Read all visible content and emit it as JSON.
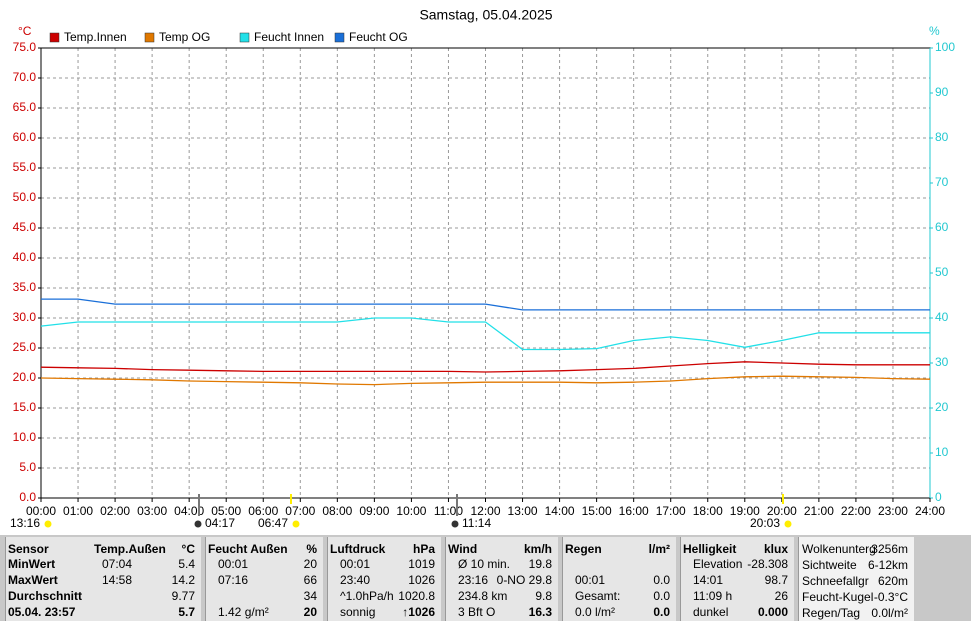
{
  "chart_data": {
    "type": "line",
    "title": "Samstag, 05.04.2025",
    "y_unit": "°C",
    "y2_unit": "%",
    "x": [
      0,
      1,
      2,
      3,
      4,
      5,
      6,
      7,
      8,
      9,
      10,
      11,
      12,
      13,
      14,
      15,
      16,
      17,
      18,
      19,
      20,
      21,
      22,
      23,
      24
    ],
    "series": [
      {
        "name": "Temp.Innen",
        "color": "#cc0000",
        "values": [
          21.8,
          21.7,
          21.6,
          21.4,
          21.3,
          21.2,
          21.1,
          21.1,
          21.1,
          21.1,
          21.1,
          21.1,
          21.0,
          21.1,
          21.2,
          21.4,
          21.6,
          22.0,
          22.4,
          22.7,
          22.5,
          22.3,
          22.2,
          22.2,
          22.2
        ]
      },
      {
        "name": "Temp OG",
        "color": "#e07800",
        "values": [
          20.0,
          19.9,
          19.8,
          19.7,
          19.5,
          19.4,
          19.3,
          19.2,
          19.0,
          18.9,
          19.1,
          19.2,
          19.3,
          19.3,
          19.3,
          19.2,
          19.3,
          19.5,
          19.9,
          20.2,
          20.3,
          20.2,
          20.1,
          19.9,
          19.8
        ]
      },
      {
        "name": "Feucht Innen",
        "color": "#22e0e8",
        "axis": "y2",
        "values": [
          38.2,
          39.1,
          39.1,
          39.1,
          39.1,
          39.1,
          39.1,
          39.1,
          39.1,
          40,
          40,
          39.1,
          39.1,
          33,
          33,
          33.2,
          35,
          35.8,
          35,
          33.5,
          35,
          36.7,
          36.7,
          36.7,
          36.7
        ]
      },
      {
        "name": "Feucht OG",
        "color": "#1a6fd8",
        "axis": "y2",
        "values": [
          44.2,
          44.2,
          43.1,
          43.1,
          43.1,
          43.1,
          43.1,
          43.1,
          43.1,
          43.1,
          43.1,
          43.1,
          43.1,
          41.8,
          41.8,
          41.8,
          41.8,
          41.8,
          41.8,
          41.8,
          41.8,
          41.8,
          41.8,
          41.8,
          41.8
        ]
      }
    ],
    "xlim": [
      0,
      24
    ],
    "xticks": [
      {
        "value": 0,
        "label": "00:00"
      },
      {
        "value": 1,
        "label": "01:00"
      },
      {
        "value": 2,
        "label": "02:00"
      },
      {
        "value": 3,
        "label": "03:00"
      },
      {
        "value": 4,
        "label": "04:00"
      },
      {
        "value": 5,
        "label": "05:00"
      },
      {
        "value": 6,
        "label": "06:00"
      },
      {
        "value": 7,
        "label": "07:00"
      },
      {
        "value": 8,
        "label": "08:00"
      },
      {
        "value": 9,
        "label": "09:00"
      },
      {
        "value": 10,
        "label": "10:00"
      },
      {
        "value": 11,
        "label": "11:00"
      },
      {
        "value": 12,
        "label": "12:00"
      },
      {
        "value": 13,
        "label": "13:00"
      },
      {
        "value": 14,
        "label": "14:00"
      },
      {
        "value": 15,
        "label": "15:00"
      },
      {
        "value": 16,
        "label": "16:00"
      },
      {
        "value": 17,
        "label": "17:00"
      },
      {
        "value": 18,
        "label": "18:00"
      },
      {
        "value": 19,
        "label": "19:00"
      },
      {
        "value": 20,
        "label": "20:00"
      },
      {
        "value": 21,
        "label": "21:00"
      },
      {
        "value": 22,
        "label": "22:00"
      },
      {
        "value": 23,
        "label": "23:00"
      },
      {
        "value": 24,
        "label": "24:00"
      }
    ],
    "ylim": [
      0,
      75
    ],
    "yticks": [
      {
        "value": 0,
        "label": "0.0"
      },
      {
        "value": 5,
        "label": "5.0"
      },
      {
        "value": 10,
        "label": "10.0"
      },
      {
        "value": 15,
        "label": "15.0"
      },
      {
        "value": 20,
        "label": "20.0"
      },
      {
        "value": 25,
        "label": "25.0"
      },
      {
        "value": 30,
        "label": "30.0"
      },
      {
        "value": 35,
        "label": "35.0"
      },
      {
        "value": 40,
        "label": "40.0"
      },
      {
        "value": 45,
        "label": "45.0"
      },
      {
        "value": 50,
        "label": "50.0"
      },
      {
        "value": 55,
        "label": "55.0"
      },
      {
        "value": 60,
        "label": "60.0"
      },
      {
        "value": 65,
        "label": "65.0"
      },
      {
        "value": 70,
        "label": "70.0"
      },
      {
        "value": 75,
        "label": "75.0"
      }
    ],
    "y2lim": [
      0,
      100
    ],
    "y2ticks": [
      0,
      10,
      20,
      30,
      40,
      50,
      60,
      70,
      80,
      90,
      100
    ],
    "grid": true,
    "annotations": [
      "13:16",
      "04:17",
      "06:47",
      "11:14",
      "20:03"
    ]
  },
  "stats": {
    "blocks": [
      {
        "header": [
          "Sensor",
          "Temp.Außen",
          "°C"
        ],
        "rows": [
          [
            "MinWert",
            "07:04",
            "5.4"
          ],
          [
            "MaxWert",
            "14:58",
            "14.2"
          ],
          [
            "Durchschnitt",
            null,
            "9.77"
          ],
          [
            "05.04. 23:57",
            null,
            "5.7"
          ]
        ]
      },
      {
        "header": [
          "Feucht Außen",
          "%"
        ],
        "rows": [
          [
            "00:01",
            "20"
          ],
          [
            "07:16",
            "66"
          ],
          [
            null,
            "34"
          ],
          [
            "1.42 g/m²",
            "20"
          ]
        ]
      },
      {
        "header": [
          "Luftdruck",
          "hPa"
        ],
        "rows": [
          [
            "00:01",
            "1019"
          ],
          [
            "23:40",
            "1026"
          ],
          [
            "^1.0hPa/h",
            "1020.8"
          ],
          [
            "sonnig",
            "↑1026"
          ]
        ]
      },
      {
        "header": [
          "Wind",
          "km/h"
        ],
        "rows": [
          [
            "Ø 10 min.",
            "19.8"
          ],
          [
            "23:16",
            "0-NO 29.8"
          ],
          [
            "234.8 km",
            "9.8"
          ],
          [
            "3 Bft O",
            "16.3"
          ]
        ]
      },
      {
        "header": [
          "Regen",
          "l/m²"
        ],
        "rows": [
          [
            null,
            null
          ],
          [
            "00:01",
            "0.0"
          ],
          [
            "Gesamt:",
            "0.0"
          ],
          [
            "0.0 l/m²",
            "0.0"
          ]
        ]
      },
      {
        "header": [
          "Helligkeit",
          "klux"
        ],
        "rows": [
          [
            "Elevation",
            "-28.308"
          ],
          [
            "14:01",
            "98.7"
          ],
          [
            "11:09 h",
            "26"
          ],
          [
            "dunkel",
            "0.000"
          ]
        ]
      },
      {
        "rows": [
          [
            "Wolkenunterg",
            "3256m"
          ],
          [
            "Sichtweite",
            "6-12km"
          ],
          [
            "Schneefallgr",
            "620m"
          ],
          [
            "Feucht-Kugel",
            "-0.3°C"
          ],
          [
            "Regen/Tag",
            "0.0l/m²"
          ]
        ]
      }
    ]
  }
}
